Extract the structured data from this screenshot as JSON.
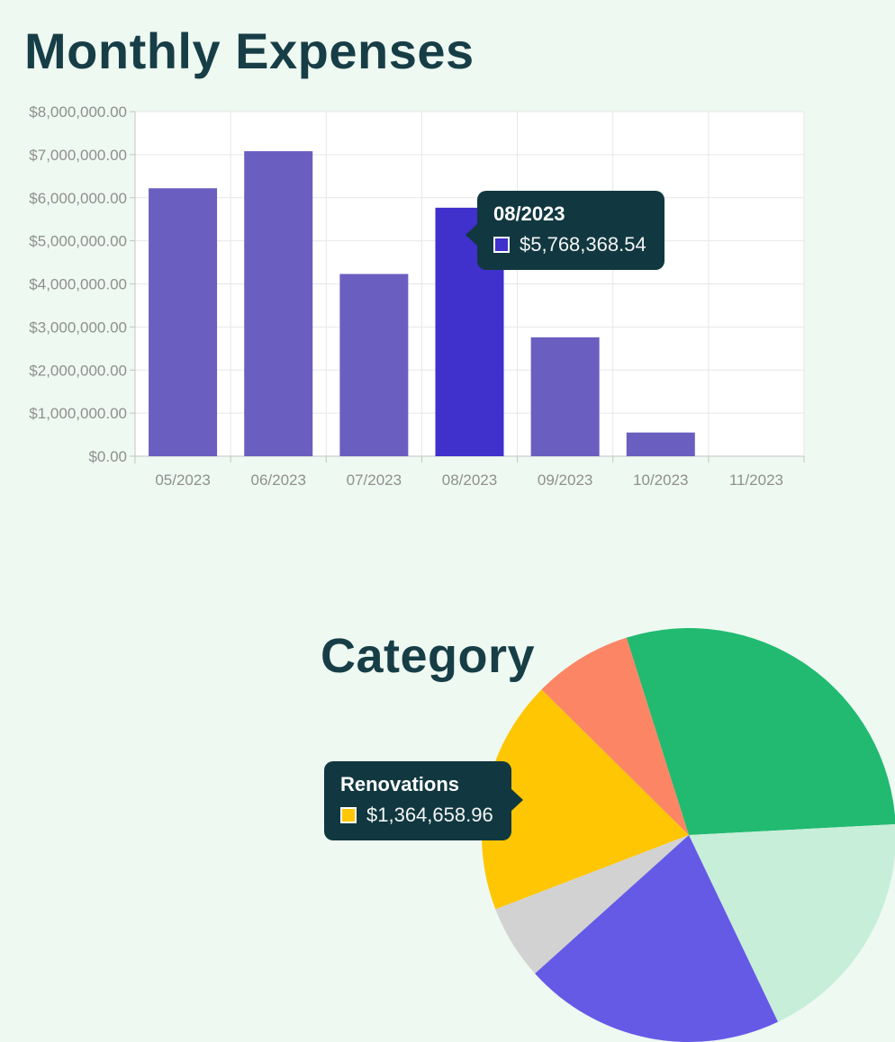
{
  "page": {
    "background_color": "#eef9f2",
    "heading_color": "#173e46",
    "tooltip_background_color": "#113840"
  },
  "chart_data": [
    {
      "type": "bar",
      "title": "Monthly Expenses",
      "categories": [
        "05/2023",
        "06/2023",
        "07/2023",
        "08/2023",
        "09/2023",
        "10/2023",
        "11/2023"
      ],
      "values": [
        6220000,
        7080000,
        4230000,
        5768368.54,
        2760000,
        550000,
        0
      ],
      "highlighted_index": 3,
      "bar_color": "#6a5ec0",
      "highlight_color": "#4030cc",
      "ylim": [
        0,
        8000000
      ],
      "y_tick_step": 1000000,
      "y_tick_labels": [
        "$0.00",
        "$1,000,000.00",
        "$2,000,000.00",
        "$3,000,000.00",
        "$4,000,000.00",
        "$5,000,000.00",
        "$6,000,000.00",
        "$7,000,000.00",
        "$8,000,000.00"
      ],
      "grid": true,
      "plot_background": "#ffffff",
      "gridline_color": "#e7e7e7",
      "axis_line_color": "#c4c4c4",
      "tick_label_color": "#8f8f8f",
      "tooltip": {
        "title": "08/2023",
        "value_text": "$5,768,368.54",
        "swatch_color": "#4030cc"
      }
    },
    {
      "type": "pie",
      "title": "Category",
      "slices": [
        {
          "label": "",
          "color": "#21ba70",
          "start_deg": -17.5,
          "end_deg": 87,
          "percent_estimate": 29.0
        },
        {
          "label": "",
          "color": "#c7eed9",
          "start_deg": 87,
          "end_deg": 154.5,
          "percent_estimate": 18.8
        },
        {
          "label": "",
          "color": "#655ae6",
          "start_deg": 154.5,
          "end_deg": 228,
          "percent_estimate": 20.4
        },
        {
          "label": "",
          "color": "#d2d2d2",
          "start_deg": 228,
          "end_deg": 249,
          "percent_estimate": 5.8
        },
        {
          "label": "Renovations",
          "color": "#ffc603",
          "start_deg": 249,
          "end_deg": 314.7,
          "percent_estimate": 18.3,
          "value": 1364658.96
        },
        {
          "label": "",
          "color": "#fb8565",
          "start_deg": 314.7,
          "end_deg": 342.5,
          "percent_estimate": 7.7
        }
      ],
      "legend_position": "none",
      "tooltip": {
        "label": "Renovations",
        "value_text": "$1,364,658.96",
        "swatch_color": "#ffc603"
      }
    }
  ]
}
